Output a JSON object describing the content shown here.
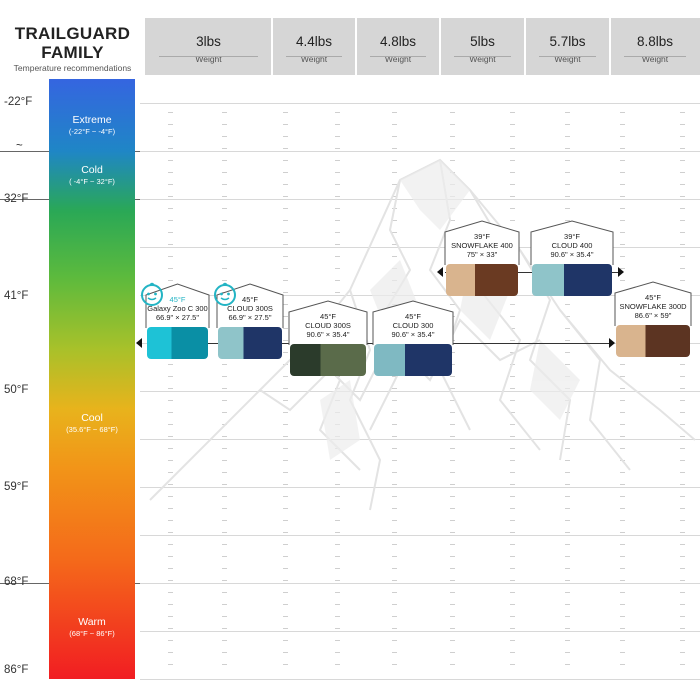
{
  "brand": {
    "title": "TRAILGUARD\nFAMILY",
    "subtitle": "Temperature recommendations"
  },
  "weights": [
    {
      "value": "3lbs",
      "label": "Weight"
    },
    {
      "value": "4.4lbs",
      "label": "Weight"
    },
    {
      "value": "4.8lbs",
      "label": "Weight"
    },
    {
      "value": "5lbs",
      "label": "Weight"
    },
    {
      "value": "5.7lbs",
      "label": "Weight"
    },
    {
      "value": "8.8lbs",
      "label": "Weight"
    }
  ],
  "temp_axis": [
    "-22°F",
    "~",
    "32°F",
    "41°F",
    "50°F",
    "59°F",
    "68°F",
    "86°F"
  ],
  "zones": [
    {
      "name": "Extreme",
      "range": "(-22°F ~ -4°F)"
    },
    {
      "name": "Cold",
      "range": "( -4°F ~ 32°F)"
    },
    {
      "name": "Cool",
      "range": "(35.6°F ~ 68°F)"
    },
    {
      "name": "Warm",
      "range": "(68°F ~ 86°F)"
    }
  ],
  "products": [
    {
      "temp": "45°F",
      "name": "Galaxy Zoo C 300",
      "size": "66.9\" × 27.5\"",
      "weight": "3lbs",
      "kids": true
    },
    {
      "temp": "45°F",
      "name": "CLOUD 300S",
      "size": "66.9\" × 27.5\"",
      "weight": "4.4lbs",
      "kids": true
    },
    {
      "temp": "45°F",
      "name": "CLOUD 300S",
      "size": "90.6\" × 35.4\"",
      "weight": "4.8lbs",
      "kids": false
    },
    {
      "temp": "45°F",
      "name": "CLOUD 300",
      "size": "90.6\" × 35.4\"",
      "weight": "5lbs",
      "kids": false
    },
    {
      "temp": "39°F",
      "name": "SNOWFLAKE 400",
      "size": "75\" × 33\"",
      "weight": "5lbs",
      "kids": false
    },
    {
      "temp": "39°F",
      "name": "CLOUD 400",
      "size": "90.6\" × 35.4\"",
      "weight": "5.7lbs",
      "kids": false
    },
    {
      "temp": "45°F",
      "name": "SNOWFLAKE 300D",
      "size": "86.6\" × 59\"",
      "weight": "8.8lbs",
      "kids": false
    }
  ],
  "colors": {
    "header_bg": "#d6d6d6",
    "extreme": "#3565e0",
    "cold": "#2aa856",
    "cool": "#f29418",
    "warm": "#f11d22",
    "kids_accent": "#23b4c4"
  },
  "chart_data": {
    "type": "scatter",
    "title": "TRAILGUARD FAMILY",
    "subtitle": "Temperature recommendations",
    "x": [
      "3lbs",
      "4.4lbs",
      "4.8lbs",
      "5lbs",
      "5.7lbs",
      "8.8lbs"
    ],
    "y_ticks": [
      "-22°F",
      "32°F",
      "41°F",
      "50°F",
      "59°F",
      "68°F",
      "86°F"
    ],
    "series": [
      {
        "name": "Galaxy Zoo C 300",
        "x": "3lbs",
        "y": 45
      },
      {
        "name": "CLOUD 300S",
        "x": "4.4lbs",
        "y": 45
      },
      {
        "name": "CLOUD 300S",
        "x": "4.8lbs",
        "y": 45
      },
      {
        "name": "CLOUD 300",
        "x": "5lbs",
        "y": 45
      },
      {
        "name": "SNOWFLAKE 400",
        "x": "5lbs",
        "y": 39
      },
      {
        "name": "CLOUD 400",
        "x": "5.7lbs",
        "y": 39
      },
      {
        "name": "SNOWFLAKE 300D",
        "x": "8.8lbs",
        "y": 45
      }
    ]
  }
}
